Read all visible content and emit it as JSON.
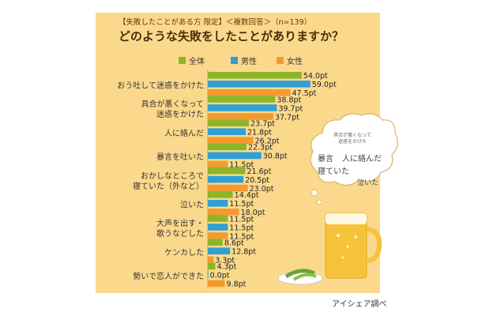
{
  "header": {
    "subtitle": "【失敗したことがある方 限定】＜複数回答＞（n=139）",
    "title": "どのような失敗をしたことがありますか？"
  },
  "credit": "アイシェア調べ",
  "colors": {
    "all": "#8cb62a",
    "male": "#2f9fd6",
    "female": "#f29a30",
    "panel": "#fbd98c"
  },
  "illustration": {
    "bubble_small": "具合が悪くなって\n迷惑をかけた",
    "bubble_items": [
      "暴言",
      "人に絡んだ",
      "寝ていた",
      "泣いた"
    ]
  },
  "chart_data": {
    "type": "bar",
    "orientation": "horizontal",
    "title": "どのような失敗をしたことがありますか？",
    "unit": "pt",
    "series": [
      {
        "name": "全体",
        "values": [
          54.0,
          38.8,
          23.7,
          22.3,
          21.6,
          14.4,
          11.5,
          8.6,
          4.3
        ]
      },
      {
        "name": "男性",
        "values": [
          59.0,
          39.7,
          21.8,
          30.8,
          20.5,
          11.5,
          11.5,
          12.8,
          0.0
        ]
      },
      {
        "name": "女性",
        "values": [
          47.5,
          37.7,
          26.2,
          11.5,
          23.0,
          18.0,
          11.5,
          3.3,
          9.8
        ]
      }
    ],
    "value_labels": [
      [
        "54.0pt",
        "38.8pt",
        "23.7pt",
        "22.3pt",
        "21.6pt",
        "14.4pt",
        "11.5pt",
        "8.6pt",
        "4.3pt"
      ],
      [
        "59.0pt",
        "39.7pt",
        "21.8pt",
        "30.8pt",
        "20.5pt",
        "11.5pt",
        "11.5pt",
        "12.8pt",
        "0.0pt"
      ],
      [
        "47.5pt",
        "37.7pt",
        "26.2pt",
        "11.5pt",
        "23.0pt",
        "18.0pt",
        "11.5pt",
        "3.3pt",
        "9.8pt"
      ]
    ],
    "categories": [
      [
        "おう吐して迷惑をかけた"
      ],
      [
        "具合が悪くなって",
        "迷惑をかけた"
      ],
      [
        "人に絡んだ"
      ],
      [
        "暴言を吐いた"
      ],
      [
        "おかしなところで",
        "寝ていた（外など）"
      ],
      [
        "泣いた"
      ],
      [
        "大声を出す・",
        "歌うなどした"
      ],
      [
        "ケンカした"
      ],
      [
        "勢いで恋人ができた"
      ]
    ],
    "legend": "top",
    "xlim": [
      0,
      60
    ]
  }
}
